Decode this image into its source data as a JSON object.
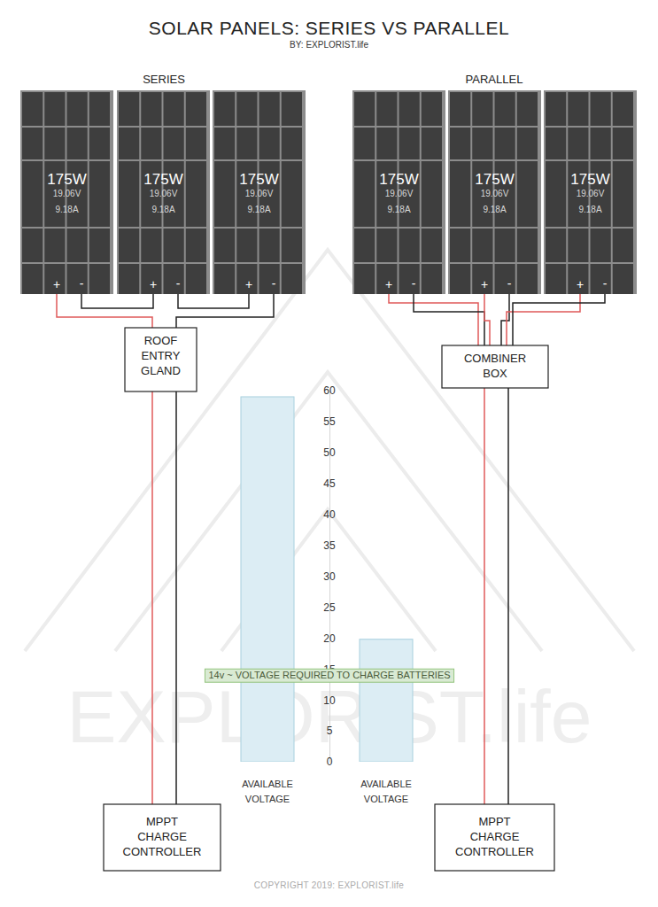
{
  "header": {
    "title": "SOLAR PANELS: SERIES VS PARALLEL",
    "byline": "BY: EXPLORIST.life"
  },
  "groups": [
    {
      "label": "SERIES",
      "panels": [
        {
          "watts": "175W",
          "volts": "19.06V",
          "amps": "9.18A",
          "positive": "+",
          "negative": "-"
        },
        {
          "watts": "175W",
          "volts": "19.06V",
          "amps": "9.18A",
          "positive": "+",
          "negative": "-"
        },
        {
          "watts": "175W",
          "volts": "19.06V",
          "amps": "9.18A",
          "positive": "+",
          "negative": "-"
        }
      ],
      "junction": [
        "ROOF",
        "ENTRY",
        "GLAND"
      ],
      "controller": [
        "MPPT",
        "CHARGE",
        "CONTROLLER"
      ]
    },
    {
      "label": "PARALLEL",
      "panels": [
        {
          "watts": "175W",
          "volts": "19.06V",
          "amps": "9.18A",
          "positive": "+",
          "negative": "-"
        },
        {
          "watts": "175W",
          "volts": "19.06V",
          "amps": "9.18A",
          "positive": "+",
          "negative": "-"
        },
        {
          "watts": "175W",
          "volts": "19.06V",
          "amps": "9.18A",
          "positive": "+",
          "negative": "-"
        }
      ],
      "junction": [
        "COMBINER",
        "BOX"
      ],
      "controller": [
        "MPPT",
        "CHARGE",
        "CONTROLLER"
      ]
    }
  ],
  "chart_data": {
    "type": "bar",
    "categories": [
      "AVAILABLE VOLTAGE",
      "AVAILABLE VOLTAGE"
    ],
    "values": [
      59,
      19.8
    ],
    "color": "#dcedf4",
    "ylim": [
      0,
      60
    ],
    "yticks": [
      0,
      5,
      10,
      15,
      20,
      25,
      30,
      35,
      40,
      45,
      50,
      55,
      60
    ],
    "annotations": [
      {
        "text": "14v ~ VOLTAGE REQUIRED TO CHARGE BATTERIES",
        "y": 14
      }
    ]
  },
  "watermark": "EXPLORIST.life",
  "footer": "COPYRIGHT 2019: EXPLORIST.life"
}
